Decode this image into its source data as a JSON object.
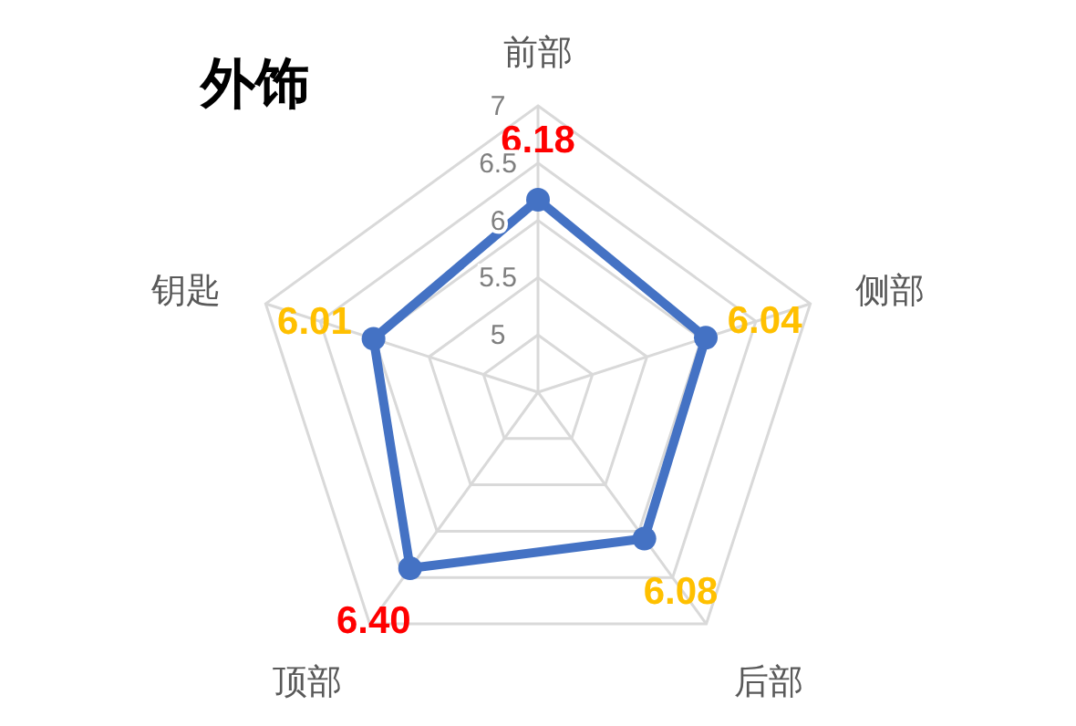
{
  "chart_data": {
    "type": "radar",
    "title": "外饰",
    "categories": [
      "前部",
      "侧部",
      "后部",
      "顶部",
      "钥匙"
    ],
    "series": [
      {
        "color": "#4472c4",
        "values": [
          6.18,
          6.04,
          6.08,
          6.4,
          6.01
        ],
        "value_labels": [
          "6.18",
          "6.04",
          "6.08",
          "6.40",
          "6.01"
        ]
      }
    ],
    "ylim": [
      4.5,
      7
    ],
    "yticks": [
      5,
      5.5,
      6,
      6.5,
      7
    ],
    "marker": "circle",
    "grid": true
  }
}
